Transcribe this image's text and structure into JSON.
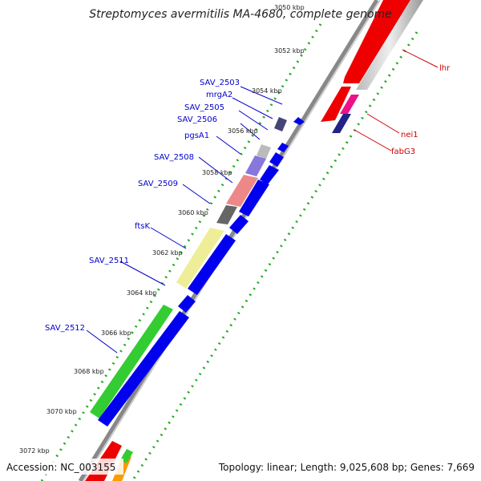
{
  "title": "Streptomyces avermitilis MA-4680, complete genome",
  "footer": {
    "accession": "Accession: NC_003155",
    "topology": "Topology: linear; Length: 9,025,608 bp; Genes: 7,669"
  },
  "ticks": [
    {
      "label": "3050 kbp"
    },
    {
      "label": "3052 kbp"
    },
    {
      "label": "3054 kbp"
    },
    {
      "label": "3056 kbp"
    },
    {
      "label": "3058 kbp"
    },
    {
      "label": "3060 kbp"
    },
    {
      "label": "3062 kbp"
    },
    {
      "label": "3064 kbp"
    },
    {
      "label": "3066 kbp"
    },
    {
      "label": "3068 kbp"
    },
    {
      "label": "3070 kbp"
    },
    {
      "label": "3072 kbp"
    }
  ],
  "gene_labels_left": [
    {
      "label": "SAV_2503"
    },
    {
      "label": "mrgA2"
    },
    {
      "label": "SAV_2505"
    },
    {
      "label": "SAV_2506"
    },
    {
      "label": "pgsA1"
    },
    {
      "label": "SAV_2508"
    },
    {
      "label": "SAV_2509"
    },
    {
      "label": "ftsK"
    },
    {
      "label": "SAV_2511"
    },
    {
      "label": "SAV_2512"
    }
  ],
  "gene_labels_right": [
    {
      "label": "lhr"
    },
    {
      "label": "nei1"
    },
    {
      "label": "fabG3"
    }
  ],
  "colors": {
    "cds_arrow": "#0000ee",
    "backbone": "#888888",
    "tick_dots": "#22aa22",
    "rna_red": "#ee0000",
    "highlight_pink": "#ee1188",
    "feature_green": "#33cc33",
    "feature_yellow": "#eeee99",
    "feature_salmon": "#ee8888",
    "feature_purple": "#8877dd",
    "feature_darkgray": "#666666",
    "label_blue": "#0000cc",
    "label_red": "#cc0000"
  }
}
